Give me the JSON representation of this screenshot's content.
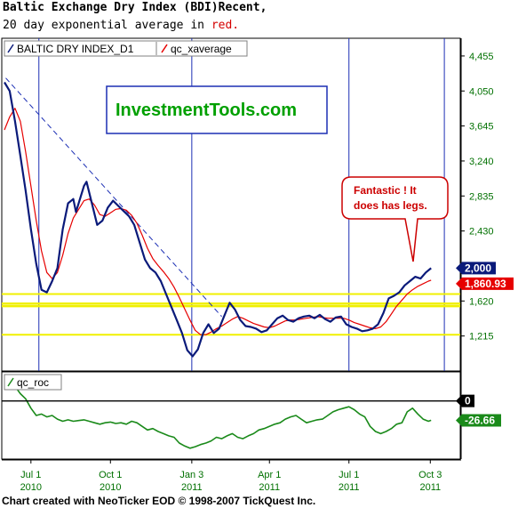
{
  "title_line1": "Baltic Exchange Dry Index (BDI)Recent,",
  "title_line2_prefix": "20 day exponential average in ",
  "title_line2_red": "red.",
  "footer": "Chart created with NeoTicker EOD © 1998-2007 TickQuest Inc.",
  "watermark": "InvestmentTools.com",
  "callout_lines": [
    "Fantastic ! It",
    "does has legs."
  ],
  "colors": {
    "price": "#0a1a7a",
    "average": "#e60000",
    "roc": "#1a8a1a",
    "axis_text": "#007000",
    "support": "#f0f000",
    "grid_vertical": "#1c2fb4",
    "trendline": "#1c2fb4"
  },
  "chart_data": [
    {
      "type": "line",
      "legend": [
        "BALTIC DRY INDEX_D1",
        "qc_xaverage"
      ],
      "x_ticks": [
        {
          "month": "Jul 1",
          "year": "2010",
          "t": 3.0
        },
        {
          "month": "Oct 1",
          "year": "2010",
          "t": 6.0
        },
        {
          "month": "Jan 3",
          "year": "2011",
          "t": 9.07
        },
        {
          "month": "Apr 1",
          "year": "2011",
          "t": 12.0
        },
        {
          "month": "Jul 1",
          "year": "2011",
          "t": 15.0
        },
        {
          "month": "Oct 3",
          "year": "2011",
          "t": 18.07
        }
      ],
      "x_range": [
        1.9,
        19.2
      ],
      "vertical_lines_t": [
        3.3,
        9.07,
        15.0,
        18.6
      ],
      "y_ticks": [
        "4,455",
        "4,050",
        "3,645",
        "3,240",
        "2,835",
        "2,430",
        "2,025",
        "1,620",
        "1,215"
      ],
      "ylim": [
        810,
        4660
      ],
      "support_levels": [
        1700,
        1590,
        1560,
        1230
      ],
      "price_label": "2,000",
      "average_label": "1,860.93",
      "series": [
        {
          "name": "BALTIC DRY INDEX_D1",
          "t": [
            2.0,
            2.2,
            2.4,
            2.6,
            2.8,
            3.0,
            3.2,
            3.4,
            3.6,
            3.8,
            4.0,
            4.2,
            4.4,
            4.6,
            4.7,
            4.9,
            5.0,
            5.1,
            5.3,
            5.5,
            5.7,
            5.9,
            6.1,
            6.3,
            6.5,
            6.7,
            6.9,
            7.1,
            7.3,
            7.5,
            7.7,
            7.9,
            8.1,
            8.3,
            8.5,
            8.7,
            8.9,
            9.1,
            9.3,
            9.5,
            9.7,
            9.9,
            10.1,
            10.3,
            10.5,
            10.7,
            10.9,
            11.1,
            11.3,
            11.5,
            11.7,
            11.9,
            12.1,
            12.3,
            12.5,
            12.7,
            12.9,
            13.1,
            13.3,
            13.5,
            13.7,
            13.9,
            14.1,
            14.3,
            14.5,
            14.7,
            14.9,
            15.1,
            15.3,
            15.5,
            15.7,
            15.9,
            16.1,
            16.3,
            16.5,
            16.7,
            16.9,
            17.1,
            17.3,
            17.5,
            17.7,
            17.9,
            18.1
          ],
          "values": [
            4150,
            4050,
            3700,
            3300,
            2900,
            2450,
            2050,
            1750,
            1720,
            1850,
            2000,
            2450,
            2750,
            2800,
            2650,
            2850,
            2950,
            3000,
            2750,
            2500,
            2550,
            2700,
            2780,
            2720,
            2660,
            2600,
            2500,
            2300,
            2100,
            2000,
            1950,
            1850,
            1700,
            1550,
            1400,
            1250,
            1050,
            980,
            1060,
            1250,
            1350,
            1250,
            1300,
            1450,
            1600,
            1520,
            1400,
            1330,
            1320,
            1300,
            1260,
            1280,
            1350,
            1420,
            1450,
            1400,
            1380,
            1420,
            1440,
            1450,
            1420,
            1460,
            1410,
            1380,
            1430,
            1440,
            1350,
            1320,
            1300,
            1270,
            1280,
            1300,
            1350,
            1480,
            1650,
            1680,
            1720,
            1800,
            1850,
            1900,
            1880,
            1950,
            2000
          ]
        },
        {
          "name": "qc_xaverage",
          "t": [
            2.0,
            2.2,
            2.4,
            2.6,
            2.8,
            3.0,
            3.2,
            3.4,
            3.6,
            3.8,
            4.0,
            4.2,
            4.4,
            4.6,
            4.8,
            5.0,
            5.2,
            5.4,
            5.6,
            5.8,
            6.0,
            6.2,
            6.4,
            6.6,
            6.8,
            7.0,
            7.2,
            7.4,
            7.6,
            7.8,
            8.0,
            8.2,
            8.4,
            8.6,
            8.8,
            9.0,
            9.2,
            9.4,
            9.6,
            9.8,
            10.0,
            10.2,
            10.4,
            10.6,
            10.8,
            11.0,
            11.2,
            11.4,
            11.6,
            11.8,
            12.0,
            12.2,
            12.4,
            12.6,
            12.8,
            13.0,
            13.2,
            13.4,
            13.6,
            13.8,
            14.0,
            14.2,
            14.4,
            14.6,
            14.8,
            15.0,
            15.2,
            15.4,
            15.6,
            15.8,
            16.0,
            16.2,
            16.4,
            16.6,
            16.8,
            17.0,
            17.2,
            17.4,
            17.6,
            17.8,
            18.0,
            18.1
          ],
          "values": [
            3600,
            3750,
            3850,
            3700,
            3350,
            2950,
            2550,
            2200,
            1950,
            1880,
            1950,
            2150,
            2400,
            2580,
            2680,
            2780,
            2800,
            2730,
            2620,
            2600,
            2640,
            2680,
            2690,
            2670,
            2610,
            2520,
            2380,
            2230,
            2110,
            2030,
            1960,
            1880,
            1780,
            1660,
            1530,
            1400,
            1280,
            1230,
            1230,
            1260,
            1300,
            1330,
            1370,
            1410,
            1440,
            1420,
            1390,
            1360,
            1340,
            1320,
            1310,
            1330,
            1360,
            1390,
            1400,
            1400,
            1410,
            1420,
            1430,
            1440,
            1430,
            1420,
            1420,
            1420,
            1420,
            1400,
            1370,
            1350,
            1330,
            1310,
            1300,
            1320,
            1380,
            1470,
            1560,
            1630,
            1700,
            1750,
            1790,
            1820,
            1850,
            1860.93
          ]
        }
      ],
      "trendline": {
        "t": [
          2.05,
          10.2
        ],
        "values": [
          4200,
          1440
        ]
      }
    },
    {
      "type": "line",
      "legend": [
        "qc_roc"
      ],
      "zero_label": "0",
      "value_label": "-26.66",
      "ylim": [
        -80,
        40
      ],
      "series": [
        {
          "name": "qc_roc",
          "t": [
            2.0,
            2.2,
            2.4,
            2.6,
            2.8,
            3.0,
            3.2,
            3.4,
            3.6,
            3.8,
            4.0,
            4.2,
            4.4,
            4.6,
            4.8,
            5.0,
            5.2,
            5.4,
            5.6,
            5.8,
            6.0,
            6.2,
            6.4,
            6.6,
            6.8,
            7.0,
            7.2,
            7.4,
            7.6,
            7.8,
            8.0,
            8.2,
            8.4,
            8.6,
            8.8,
            9.0,
            9.2,
            9.4,
            9.6,
            9.8,
            10.0,
            10.2,
            10.4,
            10.6,
            10.8,
            11.0,
            11.2,
            11.4,
            11.6,
            11.8,
            12.0,
            12.2,
            12.4,
            12.6,
            12.8,
            13.0,
            13.2,
            13.4,
            13.6,
            13.8,
            14.0,
            14.2,
            14.4,
            14.6,
            14.8,
            15.0,
            15.2,
            15.4,
            15.6,
            15.8,
            16.0,
            16.2,
            16.4,
            16.6,
            16.8,
            17.0,
            17.2,
            17.4,
            17.6,
            17.8,
            18.0,
            18.1
          ],
          "values": [
            18,
            25,
            20,
            10,
            3,
            -10,
            -20,
            -18,
            -22,
            -20,
            -25,
            -28,
            -26,
            -28,
            -27,
            -26,
            -28,
            -30,
            -32,
            -30,
            -29,
            -31,
            -30,
            -32,
            -28,
            -30,
            -35,
            -40,
            -38,
            -42,
            -45,
            -48,
            -50,
            -58,
            -62,
            -65,
            -63,
            -60,
            -58,
            -55,
            -50,
            -52,
            -48,
            -45,
            -50,
            -52,
            -48,
            -45,
            -40,
            -38,
            -35,
            -32,
            -30,
            -25,
            -22,
            -20,
            -25,
            -30,
            -28,
            -26,
            -25,
            -20,
            -15,
            -12,
            -10,
            -8,
            -12,
            -18,
            -22,
            -35,
            -42,
            -45,
            -42,
            -38,
            -32,
            -30,
            -15,
            -10,
            -18,
            -25,
            -28,
            -26.66
          ]
        }
      ]
    }
  ]
}
